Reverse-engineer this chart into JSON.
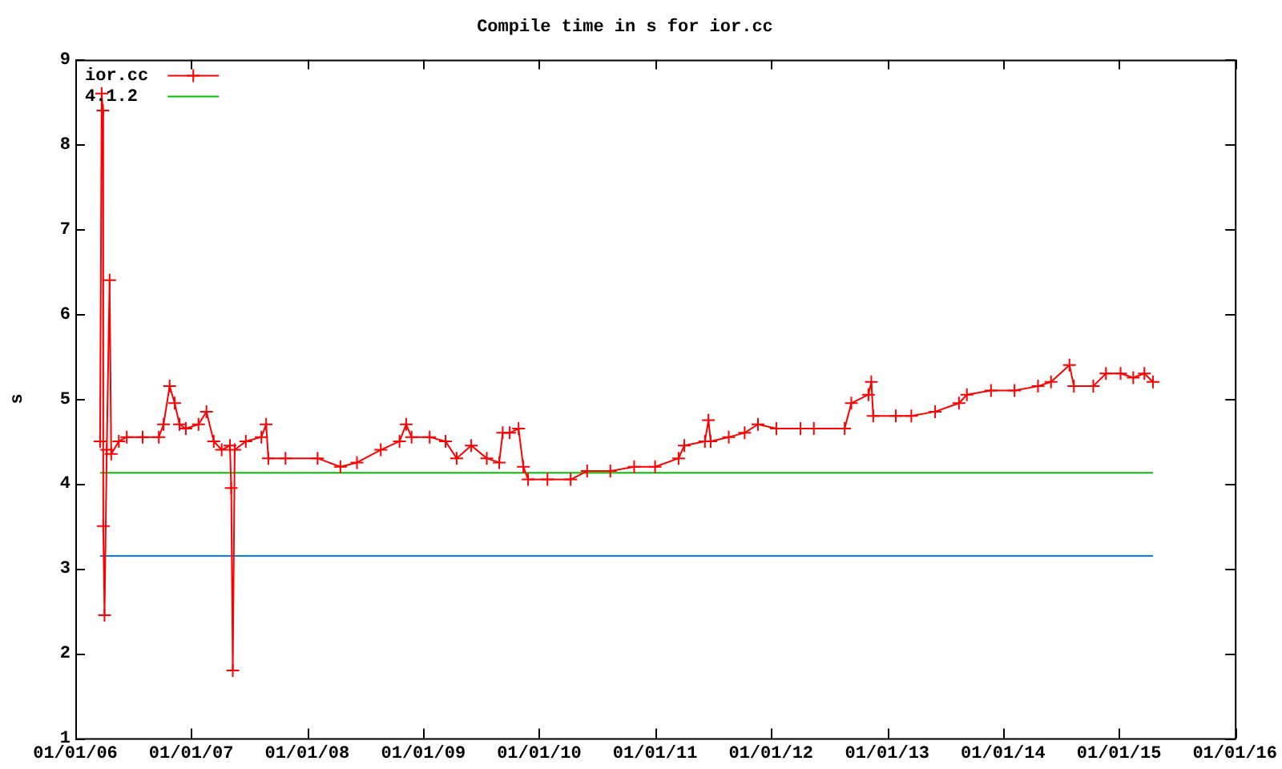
{
  "chart_data": {
    "type": "line",
    "title": "Compile time in s for ior.cc",
    "ylabel": "s",
    "xlim": [
      "2006-01-01",
      "2016-01-01"
    ],
    "xticks": [
      {
        "value": "2006-01-01",
        "label": "01/01/06"
      },
      {
        "value": "2007-01-01",
        "label": "01/01/07"
      },
      {
        "value": "2008-01-01",
        "label": "01/01/08"
      },
      {
        "value": "2009-01-01",
        "label": "01/01/09"
      },
      {
        "value": "2010-01-01",
        "label": "01/01/10"
      },
      {
        "value": "2011-01-01",
        "label": "01/01/11"
      },
      {
        "value": "2012-01-01",
        "label": "01/01/12"
      },
      {
        "value": "2013-01-01",
        "label": "01/01/13"
      },
      {
        "value": "2014-01-01",
        "label": "01/01/14"
      },
      {
        "value": "2015-01-01",
        "label": "01/01/15"
      },
      {
        "value": "2016-01-01",
        "label": "01/01/16"
      }
    ],
    "ylim": [
      1,
      9
    ],
    "yticks": [
      1,
      2,
      3,
      4,
      5,
      6,
      7,
      8,
      9
    ],
    "grid": false,
    "legend": "top left",
    "series": [
      {
        "name": "ior.cc",
        "color": "#ff0000",
        "marker": "cross",
        "x": [
          "2006-03-20",
          "2006-03-25",
          "2006-03-29",
          "2006-03-30",
          "2006-04-03",
          "2006-04-10",
          "2006-04-19",
          "2006-04-24",
          "2006-05-18",
          "2006-06-12",
          "2006-08-01",
          "2006-09-21",
          "2006-10-06",
          "2006-10-25",
          "2006-11-10",
          "2006-11-25",
          "2006-12-15",
          "2007-01-24",
          "2007-02-18",
          "2007-03-13",
          "2007-04-07",
          "2007-05-03",
          "2007-05-07",
          "2007-05-12",
          "2007-05-18",
          "2007-06-22",
          "2007-08-10",
          "2007-08-25",
          "2007-09-01",
          "2007-10-25",
          "2008-02-03",
          "2008-04-15",
          "2008-06-06",
          "2008-08-20",
          "2008-10-18",
          "2008-11-08",
          "2008-11-25",
          "2009-01-21",
          "2009-03-12",
          "2009-04-16",
          "2009-06-01",
          "2009-07-20",
          "2009-08-28",
          "2009-09-08",
          "2009-09-30",
          "2009-10-28",
          "2009-11-12",
          "2009-11-27",
          "2010-01-27",
          "2010-04-10",
          "2010-06-01",
          "2010-08-13",
          "2010-10-27",
          "2011-01-01",
          "2011-03-16",
          "2011-04-03",
          "2011-06-07",
          "2011-06-18",
          "2011-06-25",
          "2011-08-21",
          "2011-10-10",
          "2011-11-21",
          "2012-01-18",
          "2012-04-03",
          "2012-05-15",
          "2012-08-20",
          "2012-09-10",
          "2012-11-03",
          "2012-11-12",
          "2012-11-18",
          "2013-01-28",
          "2013-03-18",
          "2013-06-01",
          "2013-08-15",
          "2013-09-09",
          "2013-11-24",
          "2014-02-06",
          "2014-04-21",
          "2014-06-01",
          "2014-07-29",
          "2014-08-12",
          "2014-10-12",
          "2014-11-21",
          "2015-01-06",
          "2015-02-15",
          "2015-03-22",
          "2015-04-18"
        ],
        "values": [
          4.5,
          8.6,
          8.4,
          3.5,
          2.45,
          4.4,
          6.4,
          4.35,
          4.5,
          4.55,
          4.55,
          4.55,
          4.7,
          5.15,
          4.95,
          4.7,
          4.65,
          4.7,
          4.85,
          4.5,
          4.4,
          4.45,
          3.95,
          1.8,
          4.4,
          4.5,
          4.55,
          4.7,
          4.3,
          4.3,
          4.3,
          4.2,
          4.25,
          4.4,
          4.5,
          4.7,
          4.55,
          4.55,
          4.5,
          4.3,
          4.45,
          4.3,
          4.25,
          4.6,
          4.6,
          4.65,
          4.2,
          4.05,
          4.05,
          4.05,
          4.15,
          4.15,
          4.2,
          4.2,
          4.3,
          4.45,
          4.5,
          4.75,
          4.5,
          4.55,
          4.6,
          4.7,
          4.65,
          4.65,
          4.65,
          4.65,
          4.95,
          5.05,
          5.2,
          4.8,
          4.8,
          4.8,
          4.85,
          4.95,
          5.05,
          5.1,
          5.1,
          5.15,
          5.2,
          5.4,
          5.15,
          5.15,
          5.3,
          5.3,
          5.25,
          5.3,
          5.2
        ]
      },
      {
        "name": "4.1.2",
        "color": "#00c000",
        "marker": "none",
        "x": [
          "2006-03-20",
          "2015-04-18"
        ],
        "values": [
          4.13,
          4.13
        ]
      },
      {
        "color": "#0080ff",
        "marker": "none",
        "x": [
          "2006-03-20",
          "2015-04-18"
        ],
        "values": [
          3.15,
          3.15
        ]
      }
    ]
  }
}
